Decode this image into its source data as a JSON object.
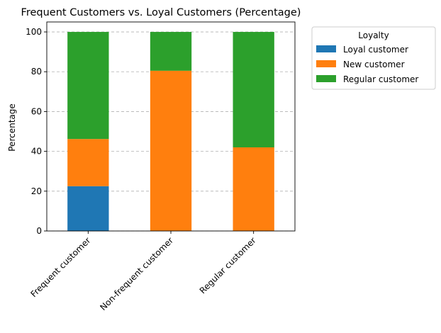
{
  "chart_data": {
    "type": "bar",
    "stacked": true,
    "title": "Frequent Customers vs. Loyal Customers (Percentage)",
    "xlabel": "",
    "ylabel": "Percentage",
    "ylim": [
      0,
      105
    ],
    "yticks": [
      0,
      20,
      40,
      60,
      80,
      100
    ],
    "grid": "y, dashed",
    "categories": [
      "Frequent customer",
      "Non-frequent customer",
      "Regular customer"
    ],
    "series": [
      {
        "name": "Loyal customer",
        "color": "#1f77b4",
        "values": [
          22.5,
          0,
          0
        ]
      },
      {
        "name": "New customer",
        "color": "#ff7f0e",
        "values": [
          23.7,
          80.5,
          42.0
        ]
      },
      {
        "name": "Regular customer",
        "color": "#2ca02c",
        "values": [
          53.8,
          19.5,
          58.0
        ]
      }
    ],
    "legend": {
      "title": "Loyalty",
      "placement": "outside-top-right"
    }
  }
}
